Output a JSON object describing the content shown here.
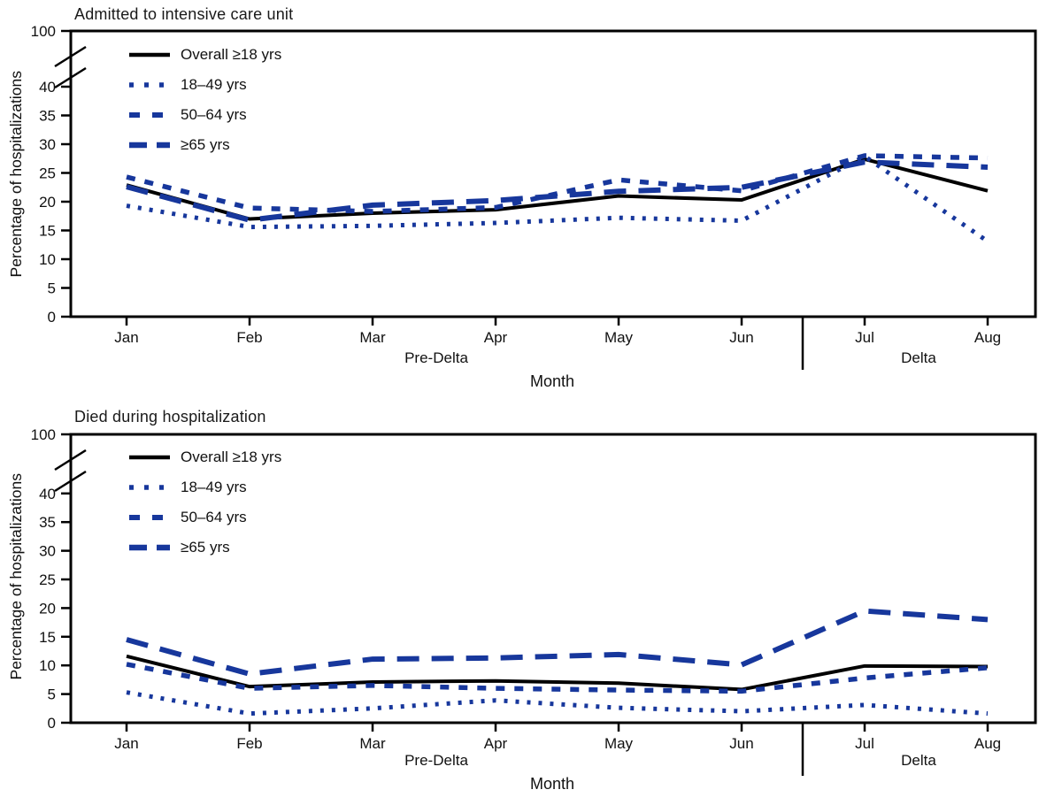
{
  "figure": {
    "xlabel": "Month",
    "ylabel": "Percentage of hospitalizations",
    "divider_after_month": "Jun",
    "colors": {
      "overall_line": "#000000",
      "age_group_lines": "#17379c",
      "axis": "#000000",
      "background": "#ffffff"
    }
  },
  "chart_data": [
    {
      "type": "line",
      "title": "Admitted to intensive care unit",
      "xlabel": "Month",
      "ylabel": "Percentage of hospitalizations",
      "x": [
        "Jan",
        "Feb",
        "Mar",
        "Apr",
        "May",
        "Jun",
        "Jul",
        "Aug"
      ],
      "y_ticks": [
        0,
        5,
        10,
        15,
        20,
        25,
        30,
        35,
        40
      ],
      "y_break_label": "100",
      "axis_break": true,
      "grid": false,
      "legend_position": "upper-left-inside",
      "periods": [
        {
          "label": "Pre-Delta",
          "covers": "Jan–Jun"
        },
        {
          "label": "Delta",
          "covers": "Jul–Aug"
        }
      ],
      "series": [
        {
          "name": "Overall ≥18 yrs",
          "style": "solid",
          "color": "#000000",
          "values": [
            22.9,
            17.0,
            18.0,
            18.6,
            21.0,
            20.3,
            27.4,
            21.9
          ]
        },
        {
          "name": "18–49 yrs",
          "style": "dotted",
          "color": "#17379c",
          "values": [
            19.3,
            15.6,
            15.8,
            16.3,
            17.2,
            16.7,
            27.9,
            13.1
          ]
        },
        {
          "name": "50–64 yrs",
          "style": "dashed-short",
          "color": "#17379c",
          "values": [
            24.3,
            18.9,
            18.3,
            19.0,
            23.8,
            21.9,
            28.0,
            27.6
          ]
        },
        {
          "name": "≥65 yrs",
          "style": "dashed-long",
          "color": "#17379c",
          "values": [
            22.6,
            16.8,
            19.4,
            20.2,
            21.8,
            22.5,
            26.9,
            26.0
          ]
        }
      ]
    },
    {
      "type": "line",
      "title": "Died during hospitalization",
      "xlabel": "Month",
      "ylabel": "Percentage of hospitalizations",
      "x": [
        "Jan",
        "Feb",
        "Mar",
        "Apr",
        "May",
        "Jun",
        "Jul",
        "Aug"
      ],
      "y_ticks": [
        0,
        5,
        10,
        15,
        20,
        25,
        30,
        35,
        40
      ],
      "y_break_label": "100",
      "axis_break": true,
      "grid": false,
      "legend_position": "upper-left-inside",
      "periods": [
        {
          "label": "Pre-Delta",
          "covers": "Jan–Jun"
        },
        {
          "label": "Delta",
          "covers": "Jul–Aug"
        }
      ],
      "series": [
        {
          "name": "Overall ≥18 yrs",
          "style": "solid",
          "color": "#000000",
          "values": [
            11.6,
            6.3,
            7.1,
            7.3,
            6.9,
            5.8,
            9.9,
            9.8
          ]
        },
        {
          "name": "18–49 yrs",
          "style": "dotted",
          "color": "#17379c",
          "values": [
            5.3,
            1.6,
            2.5,
            3.9,
            2.6,
            2.0,
            3.1,
            1.6
          ]
        },
        {
          "name": "50–64 yrs",
          "style": "dashed-short",
          "color": "#17379c",
          "values": [
            10.2,
            6.0,
            6.5,
            6.0,
            5.7,
            5.5,
            7.8,
            9.6
          ]
        },
        {
          "name": "≥65 yrs",
          "style": "dashed-long",
          "color": "#17379c",
          "values": [
            14.5,
            8.5,
            11.1,
            11.3,
            11.9,
            10.1,
            19.5,
            18.0
          ]
        }
      ]
    }
  ]
}
